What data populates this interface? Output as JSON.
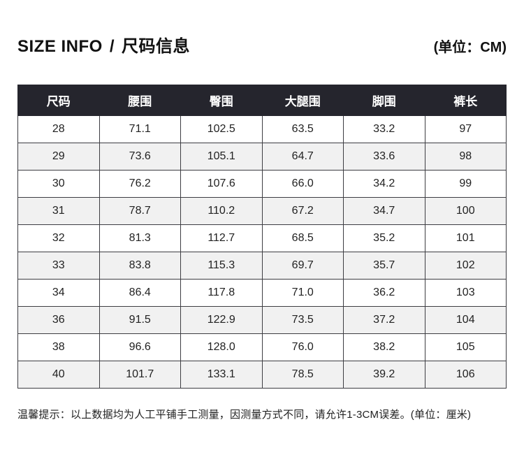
{
  "header": {
    "title_en": "SIZE INFO",
    "separator": "/",
    "title_zh": "尺码信息",
    "unit_label": "(单位：CM)"
  },
  "table": {
    "columns": [
      "尺码",
      "腰围",
      "臀围",
      "大腿围",
      "脚围",
      "裤长"
    ],
    "rows": [
      [
        "28",
        "71.1",
        "102.5",
        "63.5",
        "33.2",
        "97"
      ],
      [
        "29",
        "73.6",
        "105.1",
        "64.7",
        "33.6",
        "98"
      ],
      [
        "30",
        "76.2",
        "107.6",
        "66.0",
        "34.2",
        "99"
      ],
      [
        "31",
        "78.7",
        "110.2",
        "67.2",
        "34.7",
        "100"
      ],
      [
        "32",
        "81.3",
        "112.7",
        "68.5",
        "35.2",
        "101"
      ],
      [
        "33",
        "83.8",
        "115.3",
        "69.7",
        "35.7",
        "102"
      ],
      [
        "34",
        "86.4",
        "117.8",
        "71.0",
        "36.2",
        "103"
      ],
      [
        "36",
        "91.5",
        "122.9",
        "73.5",
        "37.2",
        "104"
      ],
      [
        "38",
        "96.6",
        "128.0",
        "76.0",
        "38.2",
        "105"
      ],
      [
        "40",
        "101.7",
        "133.1",
        "78.5",
        "39.2",
        "106"
      ]
    ]
  },
  "footer": {
    "note": "温馨提示：以上数据均为人工平铺手工测量，因测量方式不同，请允许1-3CM误差。(单位：厘米)"
  },
  "colors": {
    "header_bg": "#25252d",
    "header_text": "#ffffff",
    "row_alt_bg": "#f1f1f1",
    "border": "#3d3d42"
  }
}
